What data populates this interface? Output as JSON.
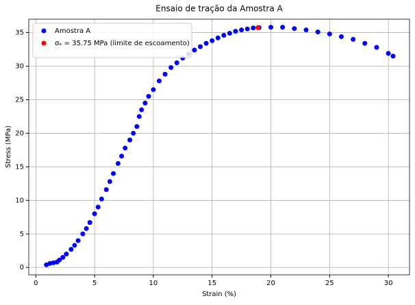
{
  "chart_data": {
    "type": "scatter",
    "title": "Ensaio de tração da Amostra A",
    "x_label": "Strain (%)",
    "y_label": "Stress (MPa)",
    "series": [
      {
        "name": "Amostra A",
        "color": "#0000ff",
        "x": [
          0.9,
          1.2,
          1.5,
          1.8,
          2.0,
          2.3,
          2.6,
          3.0,
          3.3,
          3.6,
          4.0,
          4.3,
          4.6,
          5.0,
          5.3,
          5.6,
          6.0,
          6.3,
          6.6,
          7.0,
          7.3,
          7.6,
          8.0,
          8.3,
          8.6,
          8.8,
          9.0,
          9.3,
          9.6,
          10.0,
          10.5,
          11.0,
          11.5,
          12.0,
          12.5,
          13.0,
          13.5,
          14.0,
          14.5,
          15.0,
          15.5,
          16.0,
          16.5,
          17.0,
          17.5,
          18.0,
          18.5,
          19.0,
          20.0,
          21.0,
          22.0,
          23.0,
          24.0,
          25.0,
          26.0,
          27.0,
          28.0,
          29.0,
          30.0,
          30.4
        ],
        "values": [
          0.4,
          0.6,
          0.7,
          0.8,
          1.1,
          1.5,
          2.0,
          2.7,
          3.3,
          4.0,
          5.0,
          5.8,
          6.7,
          8.0,
          9.0,
          10.2,
          11.6,
          12.8,
          14.0,
          15.5,
          16.6,
          17.8,
          19.0,
          20.0,
          21.0,
          22.5,
          23.5,
          24.5,
          25.5,
          26.5,
          27.8,
          28.8,
          29.8,
          30.5,
          31.2,
          31.8,
          32.4,
          32.9,
          33.4,
          33.8,
          34.2,
          34.6,
          34.9,
          35.2,
          35.4,
          35.55,
          35.7,
          35.75,
          35.8,
          35.8,
          35.6,
          35.4,
          35.1,
          34.8,
          34.4,
          34.0,
          33.4,
          32.8,
          31.9,
          31.5
        ]
      },
      {
        "name": "σₑ = 35.75 MPa (limite de escoamento)",
        "color": "#ff0000",
        "x": [
          18.9
        ],
        "values": [
          35.75
        ]
      }
    ],
    "xlim": [
      -0.6,
      31.8
    ],
    "ylim": [
      -1.1,
      37.0
    ],
    "xticks": [
      0,
      5,
      10,
      15,
      20,
      25,
      30
    ],
    "yticks": [
      0,
      5,
      10,
      15,
      20,
      25,
      30,
      35
    ],
    "grid": true,
    "legend": "upper left"
  }
}
